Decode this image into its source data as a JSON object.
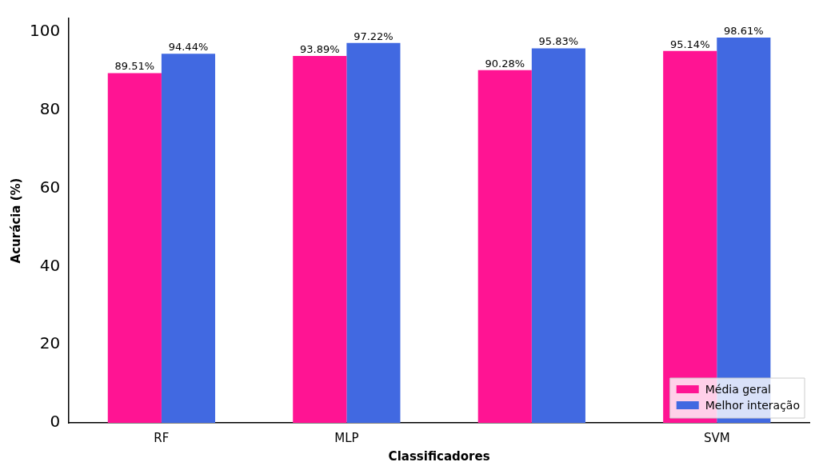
{
  "chart_data": {
    "type": "bar",
    "xlabel": "Classificadores",
    "ylabel": "Acurácia (%)",
    "categories": [
      "RF",
      "MLP",
      null,
      "SVM"
    ],
    "series": [
      {
        "name": "Média geral",
        "color": "#ff1493",
        "values": [
          89.51,
          93.89,
          90.28,
          95.14
        ],
        "value_labels": [
          "89.51%",
          "93.89%",
          "90.28%",
          "95.14%"
        ]
      },
      {
        "name": "Melhor interação",
        "color": "#4169e1",
        "values": [
          94.44,
          97.22,
          95.83,
          98.61
        ],
        "value_labels": [
          "94.44%",
          "97.22%",
          "95.83%",
          "98.61%"
        ]
      }
    ],
    "ylim": [
      0,
      103.5
    ],
    "yticks": [
      0,
      20,
      40,
      60,
      80,
      100
    ],
    "grid": false,
    "legend": "bottom right"
  }
}
